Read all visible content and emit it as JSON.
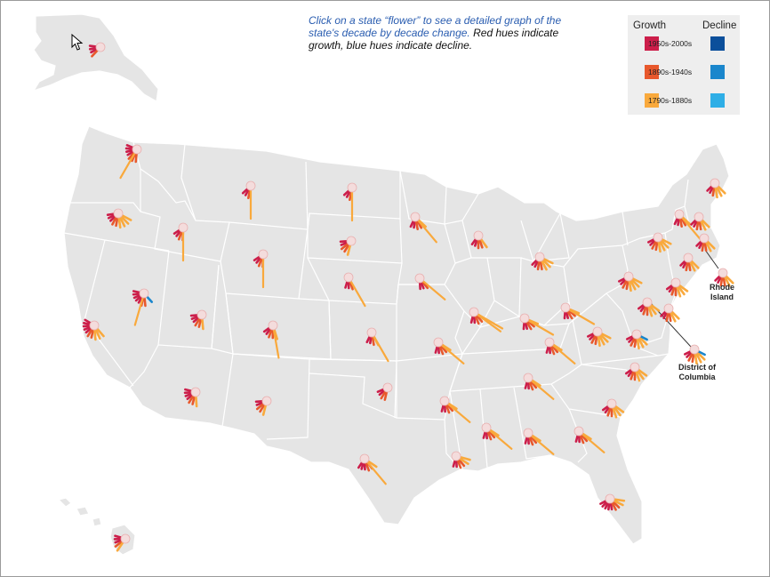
{
  "caption": {
    "link_text": "Click on a state “flower” to see a detailed graph of the state's decade by decade change.",
    "note_text": " Red hues indicate growth, blue hues indicate decline."
  },
  "legend": {
    "growth_label": "Growth",
    "decline_label": "Decline",
    "rows": [
      {
        "label": "1950s-2000s",
        "growth_color": "#cc1e4a",
        "decline_color": "#0b4f9b"
      },
      {
        "label": "1890s-1940s",
        "growth_color": "#e8582c",
        "decline_color": "#1a86cc"
      },
      {
        "label": "1790s-1880s",
        "growth_color": "#f9a93c",
        "decline_color": "#2eaee6"
      }
    ]
  },
  "callouts": {
    "rhode_island": "Rhode Island",
    "dc": "District of Columbia"
  },
  "colors": {
    "land": "#e5e5e5",
    "border": "#ffffff",
    "center": "#f4dcdc"
  },
  "icons": [
    "mouse-cursor-icon"
  ],
  "flowers": [
    {
      "state": "Alaska",
      "petals": "mmmr"
    },
    {
      "state": "Hawaii",
      "petals": "mmmro"
    },
    {
      "state": "Washington",
      "petals": "mmmmrrrL"
    },
    {
      "state": "Oregon",
      "petals": "mmmrroooo"
    },
    {
      "state": "California",
      "petals": "mmmmmrrooo"
    },
    {
      "state": "Idaho",
      "petals": "mmrrL"
    },
    {
      "state": "Nevada",
      "petals": "mmmmmrrLb"
    },
    {
      "state": "Montana",
      "petals": "mmrL"
    },
    {
      "state": "Wyoming",
      "petals": "mmrrL"
    },
    {
      "state": "Utah",
      "petals": "mmmrro"
    },
    {
      "state": "Colorado",
      "petals": "mmrroL"
    },
    {
      "state": "Arizona",
      "petals": "mmmmrro"
    },
    {
      "state": "New Mexico",
      "petals": "mmrro"
    },
    {
      "state": "North Dakota",
      "petals": "mmrL"
    },
    {
      "state": "South Dakota",
      "petals": "mmrro"
    },
    {
      "state": "Nebraska",
      "petals": "mmrL"
    },
    {
      "state": "Kansas",
      "petals": "mmroL"
    },
    {
      "state": "Oklahoma",
      "petals": "mmrr"
    },
    {
      "state": "Texas",
      "petals": "mmmrroL"
    },
    {
      "state": "Minnesota",
      "petals": "mmrroL"
    },
    {
      "state": "Iowa",
      "petals": "mmrL"
    },
    {
      "state": "Missouri",
      "petals": "mmrroL"
    },
    {
      "state": "Arkansas",
      "petals": "mmrroL"
    },
    {
      "state": "Louisiana",
      "petals": "mmrroo"
    },
    {
      "state": "Wisconsin",
      "petals": "mmrro"
    },
    {
      "state": "Illinois",
      "petals": "mmrroLL"
    },
    {
      "state": "Michigan",
      "petals": "mmrrooo"
    },
    {
      "state": "Indiana",
      "petals": "mmrroL"
    },
    {
      "state": "Ohio",
      "petals": "mmrroL"
    },
    {
      "state": "Kentucky",
      "petals": "mmrroL"
    },
    {
      "state": "Tennessee",
      "petals": "mmrroL"
    },
    {
      "state": "Mississippi",
      "petals": "mmrroL"
    },
    {
      "state": "Alabama",
      "petals": "mmrroL"
    },
    {
      "state": "Georgia",
      "petals": "mmrroL"
    },
    {
      "state": "Florida",
      "petals": "mmmmmrroo"
    },
    {
      "state": "South Carolina",
      "petals": "mmrrooo"
    },
    {
      "state": "North Carolina",
      "petals": "mmrrooo"
    },
    {
      "state": "Virginia",
      "petals": "mmrroooo"
    },
    {
      "state": "West Virginia",
      "petals": "mmrrooob"
    },
    {
      "state": "Pennsylvania",
      "petals": "mmrroooo"
    },
    {
      "state": "New York",
      "petals": "mmrroooo"
    },
    {
      "state": "Maine",
      "petals": "mmrooo"
    },
    {
      "state": "Vermont",
      "petals": "mmrroL"
    },
    {
      "state": "New Hampshire",
      "petals": "mmrroo"
    },
    {
      "state": "Massachusetts",
      "petals": "mmrroo"
    },
    {
      "state": "Rhode Island",
      "petals": "mmrroo"
    },
    {
      "state": "Connecticut",
      "petals": "mmrroo"
    },
    {
      "state": "New Jersey",
      "petals": "mmrrooo"
    },
    {
      "state": "Delaware",
      "petals": "mmrroo"
    },
    {
      "state": "Maryland",
      "petals": "mmrrooo"
    },
    {
      "state": "District of Columbia",
      "petals": "mmrrooob"
    }
  ]
}
